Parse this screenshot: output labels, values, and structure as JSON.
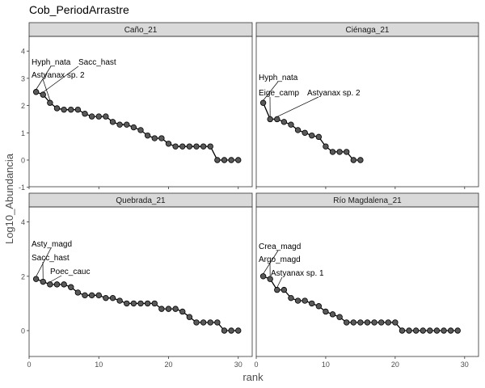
{
  "figure": {
    "title": "Cob_PeriodArrastre",
    "xlabel": "rank",
    "ylabel": "Log10_Abundancia"
  },
  "style": {
    "strip_fill": "#d9d9d9",
    "point_fill": "#595959",
    "point_stroke": "#000000",
    "line_color": "#000000",
    "grid": false
  },
  "chart_data": [
    {
      "type": "line",
      "panel": "Caño_21",
      "xlim": [
        0,
        32
      ],
      "ylim": [
        -1,
        4.5
      ],
      "xticks": [
        0,
        10,
        20,
        30
      ],
      "yticks": [
        -1,
        0,
        1,
        2,
        3,
        4
      ],
      "x": [
        1,
        2,
        3,
        4,
        5,
        6,
        7,
        8,
        9,
        10,
        11,
        12,
        13,
        14,
        15,
        16,
        17,
        18,
        19,
        20,
        21,
        22,
        23,
        24,
        25,
        26,
        27,
        28,
        29,
        30
      ],
      "y": [
        2.5,
        2.4,
        2.1,
        1.9,
        1.85,
        1.85,
        1.85,
        1.7,
        1.6,
        1.6,
        1.6,
        1.4,
        1.3,
        1.3,
        1.2,
        1.1,
        0.9,
        0.8,
        0.8,
        0.6,
        0.5,
        0.5,
        0.5,
        0.5,
        0.5,
        0.5,
        0,
        0,
        0,
        0
      ],
      "annotations": [
        {
          "text": "Hyph_nata",
          "rank": 1
        },
        {
          "text": "Sacc_hast",
          "rank": 2
        },
        {
          "text": "Astyanax sp. 2",
          "rank": 3
        }
      ]
    },
    {
      "type": "line",
      "panel": "Ciénaga_21",
      "xlim": [
        0,
        32
      ],
      "ylim": [
        -1,
        4.5
      ],
      "xticks": [
        0,
        10,
        20,
        30
      ],
      "yticks": [
        -1,
        0,
        1,
        2,
        3,
        4
      ],
      "x": [
        1,
        2,
        3,
        4,
        5,
        6,
        7,
        8,
        9,
        10,
        11,
        12,
        13,
        14,
        15
      ],
      "y": [
        2.1,
        1.5,
        1.5,
        1.4,
        1.3,
        1.1,
        1.0,
        0.9,
        0.85,
        0.5,
        0.3,
        0.3,
        0.3,
        0,
        0
      ],
      "annotations": [
        {
          "text": "Hyph_nata",
          "rank": 1
        },
        {
          "text": "Eige_camp",
          "rank": 2
        },
        {
          "text": "Astyanax sp. 2",
          "rank": 3
        }
      ]
    },
    {
      "type": "line",
      "panel": "Quebrada_21",
      "xlim": [
        0,
        32
      ],
      "ylim": [
        -1,
        4.5
      ],
      "xticks": [
        0,
        10,
        20,
        30
      ],
      "yticks": [
        0,
        2,
        4
      ],
      "x": [
        1,
        2,
        3,
        4,
        5,
        6,
        7,
        8,
        9,
        10,
        11,
        12,
        13,
        14,
        15,
        16,
        17,
        18,
        19,
        20,
        21,
        22,
        23,
        24,
        25,
        26,
        27,
        28,
        29,
        30
      ],
      "y": [
        1.9,
        1.8,
        1.7,
        1.7,
        1.7,
        1.6,
        1.4,
        1.3,
        1.3,
        1.3,
        1.2,
        1.2,
        1.1,
        1.0,
        1.0,
        1.0,
        1.0,
        1.0,
        0.8,
        0.8,
        0.8,
        0.7,
        0.5,
        0.3,
        0.3,
        0.3,
        0.3,
        0,
        0,
        0
      ],
      "annotations": [
        {
          "text": "Asty_magd",
          "rank": 1
        },
        {
          "text": "Sacc_hast",
          "rank": 2
        },
        {
          "text": "Poec_cauc",
          "rank": 3
        }
      ]
    },
    {
      "type": "line",
      "panel": "Río Magdalena_21",
      "xlim": [
        0,
        32
      ],
      "ylim": [
        -1,
        4.5
      ],
      "xticks": [
        0,
        10,
        20,
        30
      ],
      "yticks": [
        0,
        2,
        4
      ],
      "x": [
        1,
        2,
        3,
        4,
        5,
        6,
        7,
        8,
        9,
        10,
        11,
        12,
        13,
        14,
        15,
        16,
        17,
        18,
        19,
        20,
        21,
        22,
        23,
        24,
        25,
        26,
        27,
        28,
        29
      ],
      "y": [
        2.0,
        1.9,
        1.5,
        1.5,
        1.2,
        1.1,
        1.1,
        1.0,
        0.9,
        0.7,
        0.6,
        0.5,
        0.3,
        0.3,
        0.3,
        0.3,
        0.3,
        0.3,
        0.3,
        0.3,
        0,
        0,
        0,
        0,
        0,
        0,
        0,
        0,
        0
      ],
      "annotations": [
        {
          "text": "Crea_magd",
          "rank": 1
        },
        {
          "text": "Argo_magd",
          "rank": 2
        },
        {
          "text": "Astyanax sp. 1",
          "rank": 3
        }
      ]
    }
  ]
}
